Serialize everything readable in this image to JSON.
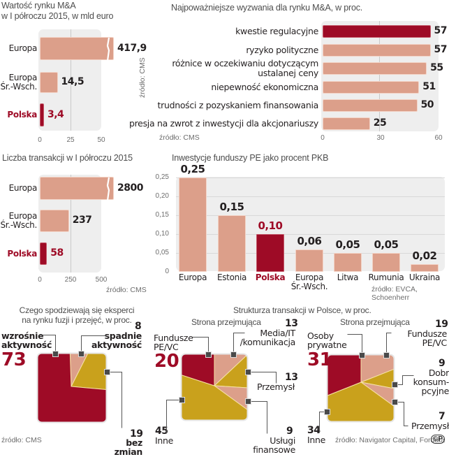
{
  "colors": {
    "salmon": "#dc9f8a",
    "crimson": "#9e0b26",
    "gold": "#c9a11c",
    "panel": "#eeeeee"
  },
  "chart_data": [
    {
      "id": "ma_value",
      "type": "bar",
      "orientation": "horizontal",
      "title": "Wartość rynku M&A\nw I półroczu 2015, w mld euro",
      "title_line1": "Wartość rynku M&A",
      "title_line2": "w I półroczu 2015, w mld euro",
      "categories": [
        "Europa",
        "Europa Śr.-Wsch.",
        "Polska"
      ],
      "category_lines": [
        [
          "Europa"
        ],
        [
          "Europa",
          "Śr.-Wsch."
        ],
        [
          "Polska"
        ]
      ],
      "values": [
        417.9,
        14.5,
        3.4
      ],
      "value_labels": [
        "417,9",
        "14,5",
        "3,4"
      ],
      "highlight": "Polska",
      "axis_break": "Europa",
      "xticks": [
        "0",
        "25",
        "50"
      ],
      "xlim": [
        0,
        50
      ],
      "source": "źródło: CMS"
    },
    {
      "id": "ma_challenges",
      "type": "bar",
      "orientation": "horizontal",
      "title": "Najpoważniejsze wyzwania dla rynku M&A, w proc.",
      "categories": [
        "kwestie regulacyjne",
        "ryzyko polityczne",
        "różnice w oczekiwaniu dotyczącym ustalanej ceny",
        "niepewność ekonomiczna",
        "trudności z pozyskaniem finansowania",
        "presja na zwrot z inwestycji dla akcjonariuszy"
      ],
      "category_lines": [
        [
          "kwestie regulacyjne"
        ],
        [
          "ryzyko polityczne"
        ],
        [
          "różnice w oczekiwaniu dotyczącym",
          "ustalanej ceny"
        ],
        [
          "niepewność ekonomiczna"
        ],
        [
          "trudności z pozyskaniem finansowania"
        ],
        [
          "presja na zwrot z inwestycji dla akcjonariuszy"
        ]
      ],
      "values": [
        57,
        57,
        55,
        51,
        50,
        25
      ],
      "value_labels": [
        "57",
        "57",
        "55",
        "51",
        "50",
        "25"
      ],
      "highlight": "kwestie regulacyjne",
      "xticks": [
        "0",
        "30",
        "60"
      ],
      "xlim": [
        0,
        60
      ],
      "source": "źródło: CMS"
    },
    {
      "id": "transactions_count",
      "type": "bar",
      "orientation": "horizontal",
      "title": "Liczba  transakcji w I półroczu 2015",
      "categories": [
        "Europa",
        "Europa Śr.-Wsch.",
        "Polska"
      ],
      "category_lines": [
        [
          "Europa"
        ],
        [
          "Europa",
          "Śr.-Wsch."
        ],
        [
          "Polska"
        ]
      ],
      "values": [
        2800,
        237,
        58
      ],
      "value_labels": [
        "2800",
        "237",
        "58"
      ],
      "highlight": "Polska",
      "axis_break": "Europa",
      "xticks": [
        "0",
        "250",
        "500"
      ],
      "xlim": [
        0,
        500
      ],
      "source": "źródło: CMS"
    },
    {
      "id": "pe_gdp",
      "type": "bar",
      "orientation": "vertical",
      "title": "Inwestycje funduszy PE jako procent PKB",
      "categories": [
        "Europa",
        "Estonia",
        "Polska",
        "Europa Śr.-Wsch.",
        "Litwa",
        "Rumunia",
        "Ukraina"
      ],
      "category_lines": [
        [
          "Europa"
        ],
        [
          "Estonia"
        ],
        [
          "Polska"
        ],
        [
          "Europa",
          "Śr.-Wsch."
        ],
        [
          "Litwa"
        ],
        [
          "Rumunia"
        ],
        [
          "Ukraina"
        ]
      ],
      "values": [
        0.25,
        0.15,
        0.1,
        0.06,
        0.05,
        0.05,
        0.02
      ],
      "value_labels": [
        "0,25",
        "0,15",
        "0,10",
        "0,06",
        "0,05",
        "0,05",
        "0,02"
      ],
      "highlight": "Polska",
      "yticks": [
        "0",
        "0,05",
        "0,10",
        "0,15",
        "0,20",
        "0,25"
      ],
      "ylim": [
        0,
        0.25
      ],
      "grid": true,
      "source": "źródło: EVCA, Schoenherr"
    },
    {
      "id": "experts_expect",
      "type": "pie",
      "title_lines": [
        "Czego spodziewają się eksperci",
        "na rynku fuzji i przejęć, w  proc."
      ],
      "slices": [
        {
          "label": "wzrośnie aktywność",
          "label_lines": [
            "wzrośnie",
            "aktywność"
          ],
          "value": 73,
          "color": "#9e0b26"
        },
        {
          "label": "spadnie aktywność",
          "label_lines": [
            "spadnie",
            "aktywność"
          ],
          "value": 8,
          "color": "#dc9f8a"
        },
        {
          "label": "bez zmian",
          "label_lines": [
            "bez zmian"
          ],
          "value": 19,
          "color": "#c9a11c"
        }
      ],
      "source": "źródło: CMS"
    },
    {
      "id": "acquirer_pl_1",
      "type": "pie",
      "title": "Strona przejmująca",
      "slices": [
        {
          "label": "Fundusze PE/VC",
          "label_lines": [
            "Fundusze",
            "PE/VC"
          ],
          "value": 20,
          "color": "#9e0b26"
        },
        {
          "label": "Media/IT/komunikacja",
          "label_lines": [
            "Media/IT",
            "/komunikacja"
          ],
          "value": 13,
          "color": "#dc9f8a"
        },
        {
          "label": "Przemysł",
          "label_lines": [
            "Przemysł"
          ],
          "value": 13,
          "color": "#c9a11c"
        },
        {
          "label": "Usługi finansowe",
          "label_lines": [
            "Usługi finansowe"
          ],
          "value": 9,
          "color": "#dc9f8a"
        },
        {
          "label": "Inne",
          "label_lines": [
            "Inne"
          ],
          "value": 45,
          "color": "#c9a11c"
        }
      ]
    },
    {
      "id": "acquirer_pl_2",
      "type": "pie",
      "title": "Strona przejmująca",
      "slices": [
        {
          "label": "Osoby prywatne",
          "label_lines": [
            "Osoby",
            "prywatne"
          ],
          "value": 31,
          "color": "#9e0b26"
        },
        {
          "label": "Fundusze PE/VC",
          "label_lines": [
            "Fundusze",
            "PE/VC"
          ],
          "value": 19,
          "color": "#dc9f8a"
        },
        {
          "label": "Dobra konsumpcyjne",
          "label_lines": [
            "Dobr",
            "konsum-",
            "pcyjne"
          ],
          "value": 9,
          "color": "#c9a11c"
        },
        {
          "label": "Przemysł",
          "label_lines": [
            "Przemysł"
          ],
          "value": 7,
          "color": "#dc9f8a"
        },
        {
          "label": "Inne",
          "label_lines": [
            "Inne"
          ],
          "value": 34,
          "color": "#c9a11c"
        }
      ]
    }
  ],
  "structure_title": "Strukturza transakcji w Polsce, w proc.",
  "footer_source": "źródło: Navigator Capital, Fordata",
  "copyright_icon": "©P"
}
